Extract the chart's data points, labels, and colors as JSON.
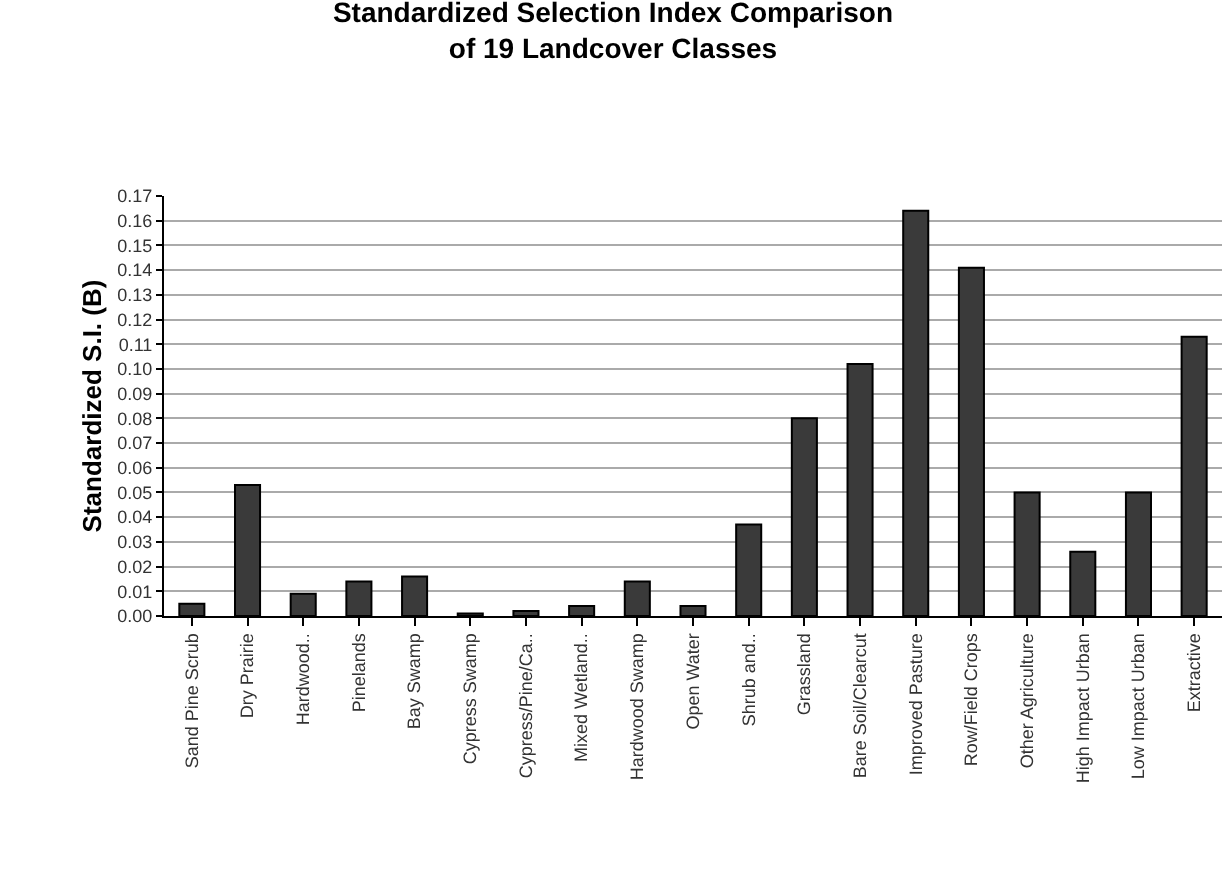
{
  "chart_data": {
    "type": "bar",
    "title": "Standardized Selection Index Comparison\nof 19 Landcover Classes",
    "ylabel": "Standardized S.I. (B)",
    "categories": [
      "Sand Pine Scrub",
      "Dry Prairie",
      "Hardwood..",
      "Pinelands",
      "Bay Swamp",
      "Cypress Swamp",
      "Cypress/Pine/Ca..",
      "Mixed Wetland..",
      "Hardwood Swamp",
      "Open Water",
      "Shrub and..",
      "Grassland",
      "Bare Soil/Clearcut",
      "Improved Pasture",
      "Row/Field Crops",
      "Other Agriculture",
      "High Impact Urban",
      "Low Impact Urban",
      "Extractive"
    ],
    "values": [
      0.005,
      0.053,
      0.009,
      0.014,
      0.016,
      0.001,
      0.002,
      0.004,
      0.014,
      0.004,
      0.037,
      0.08,
      0.102,
      0.164,
      0.141,
      0.05,
      0.026,
      0.05,
      0.113
    ],
    "color": "#3a3a3a",
    "ylim": [
      0,
      0.17
    ],
    "yticks": [
      {
        "value": 0,
        "label": "0.00"
      },
      {
        "value": 0.01,
        "label": "0.01"
      },
      {
        "value": 0.02,
        "label": "0.02"
      },
      {
        "value": 0.03,
        "label": "0.03"
      },
      {
        "value": 0.04,
        "label": "0.04"
      },
      {
        "value": 0.05,
        "label": "0.05"
      },
      {
        "value": 0.06,
        "label": "0.06"
      },
      {
        "value": 0.07,
        "label": "0.07"
      },
      {
        "value": 0.08,
        "label": "0.08"
      },
      {
        "value": 0.09,
        "label": "0.09"
      },
      {
        "value": 0.1,
        "label": "0.10"
      },
      {
        "value": 0.11,
        "label": "0.11"
      },
      {
        "value": 0.12,
        "label": "0.12"
      },
      {
        "value": 0.13,
        "label": "0.13"
      },
      {
        "value": 0.14,
        "label": "0.14"
      },
      {
        "value": 0.15,
        "label": "0.15"
      },
      {
        "value": 0.16,
        "label": "0.16"
      },
      {
        "value": 0.17,
        "label": "0.17"
      }
    ],
    "grid": "y",
    "legend": false
  }
}
